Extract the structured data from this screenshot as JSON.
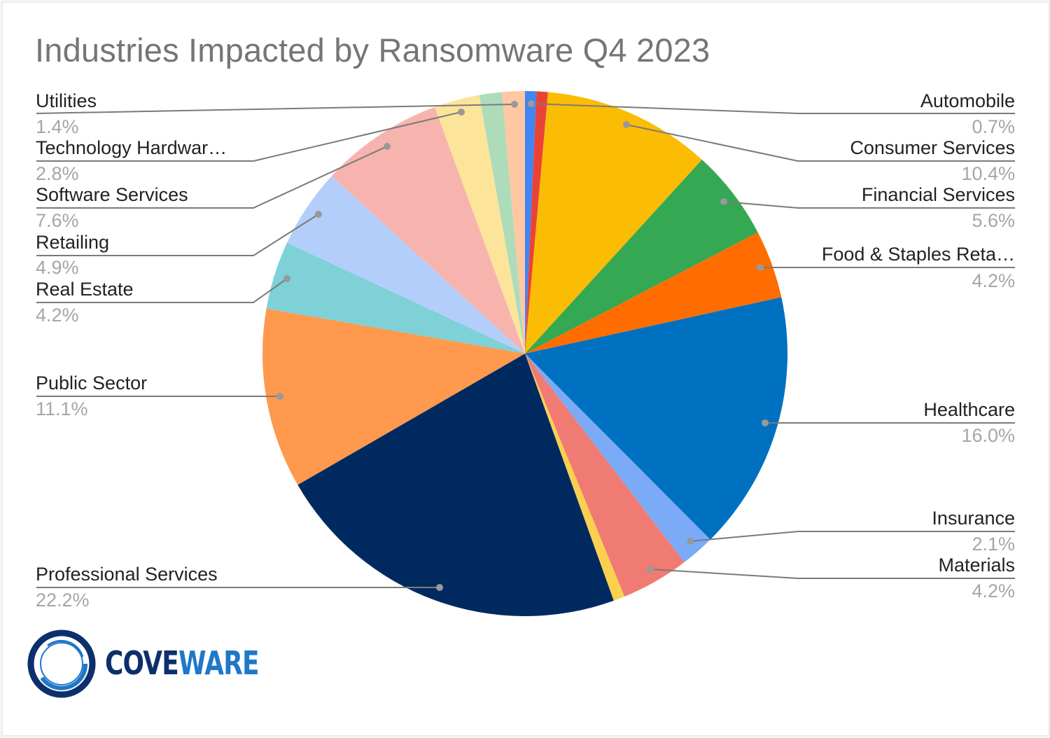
{
  "title": "Industries Impacted by Ransomware Q4 2023",
  "logo": {
    "part1": "COVE",
    "part2": "WARE"
  },
  "chart_data": {
    "type": "pie",
    "title": "Industries Impacted by Ransomware Q4 2023",
    "start_angle_deg": 0,
    "direction": "clockwise",
    "slices": [
      {
        "label": "Automobile",
        "value": 0.7,
        "display": "0.7%",
        "color": "#4285f4",
        "labeled": true
      },
      {
        "label": "",
        "value": 0.7,
        "display": "",
        "color": "#ea4335",
        "labeled": false
      },
      {
        "label": "Consumer Services",
        "value": 10.4,
        "display": "10.4%",
        "color": "#fbbc04",
        "labeled": true
      },
      {
        "label": "Financial Services",
        "value": 5.6,
        "display": "5.6%",
        "color": "#34a853",
        "labeled": true
      },
      {
        "label": "Food & Staples Reta…",
        "value": 4.2,
        "display": "4.2%",
        "color": "#ff6d01",
        "labeled": true
      },
      {
        "label": "Healthcare",
        "value": 16.0,
        "display": "16.0%",
        "color": "#0070c0",
        "labeled": true
      },
      {
        "label": "Insurance",
        "value": 2.1,
        "display": "2.1%",
        "color": "#7baaf7",
        "labeled": true
      },
      {
        "label": "Materials",
        "value": 4.2,
        "display": "4.2%",
        "color": "#f07b72",
        "labeled": true
      },
      {
        "label": "",
        "value": 0.7,
        "display": "",
        "color": "#fcd04f",
        "labeled": false
      },
      {
        "label": "Professional Services",
        "value": 22.2,
        "display": "22.2%",
        "color": "#002a5f",
        "labeled": true
      },
      {
        "label": "Public Sector",
        "value": 11.1,
        "display": "11.1%",
        "color": "#ff994d",
        "labeled": true
      },
      {
        "label": "Real Estate",
        "value": 4.2,
        "display": "4.2%",
        "color": "#7ed1d7",
        "labeled": true
      },
      {
        "label": "Retailing",
        "value": 4.9,
        "display": "4.9%",
        "color": "#b3cefb",
        "labeled": true
      },
      {
        "label": "Software Services",
        "value": 7.6,
        "display": "7.6%",
        "color": "#f7b4ae",
        "labeled": true
      },
      {
        "label": "Technology Hardwar…",
        "value": 2.8,
        "display": "2.8%",
        "color": "#fde49b",
        "labeled": true
      },
      {
        "label": "",
        "value": 1.4,
        "display": "",
        "color": "#aedcba",
        "labeled": false
      },
      {
        "label": "Utilities",
        "value": 1.4,
        "display": "1.4%",
        "color": "#ffc8a2",
        "labeled": true
      }
    ],
    "legend_position": "labels-with-leader-lines"
  },
  "labels": {
    "automobile": {
      "name": "Automobile",
      "pct": "0.7%"
    },
    "consumer": {
      "name": "Consumer Services",
      "pct": "10.4%"
    },
    "financial": {
      "name": "Financial Services",
      "pct": "5.6%"
    },
    "food": {
      "name": "Food & Staples Reta…",
      "pct": "4.2%"
    },
    "healthcare": {
      "name": "Healthcare",
      "pct": "16.0%"
    },
    "insurance": {
      "name": "Insurance",
      "pct": "2.1%"
    },
    "materials": {
      "name": "Materials",
      "pct": "4.2%"
    },
    "professional": {
      "name": "Professional Services",
      "pct": "22.2%"
    },
    "public": {
      "name": "Public Sector",
      "pct": "11.1%"
    },
    "realestate": {
      "name": "Real Estate",
      "pct": "4.2%"
    },
    "retailing": {
      "name": "Retailing",
      "pct": "4.9%"
    },
    "software": {
      "name": "Software Services",
      "pct": "7.6%"
    },
    "techhw": {
      "name": "Technology Hardwar…",
      "pct": "2.8%"
    },
    "utilities": {
      "name": "Utilities",
      "pct": "1.4%"
    }
  }
}
